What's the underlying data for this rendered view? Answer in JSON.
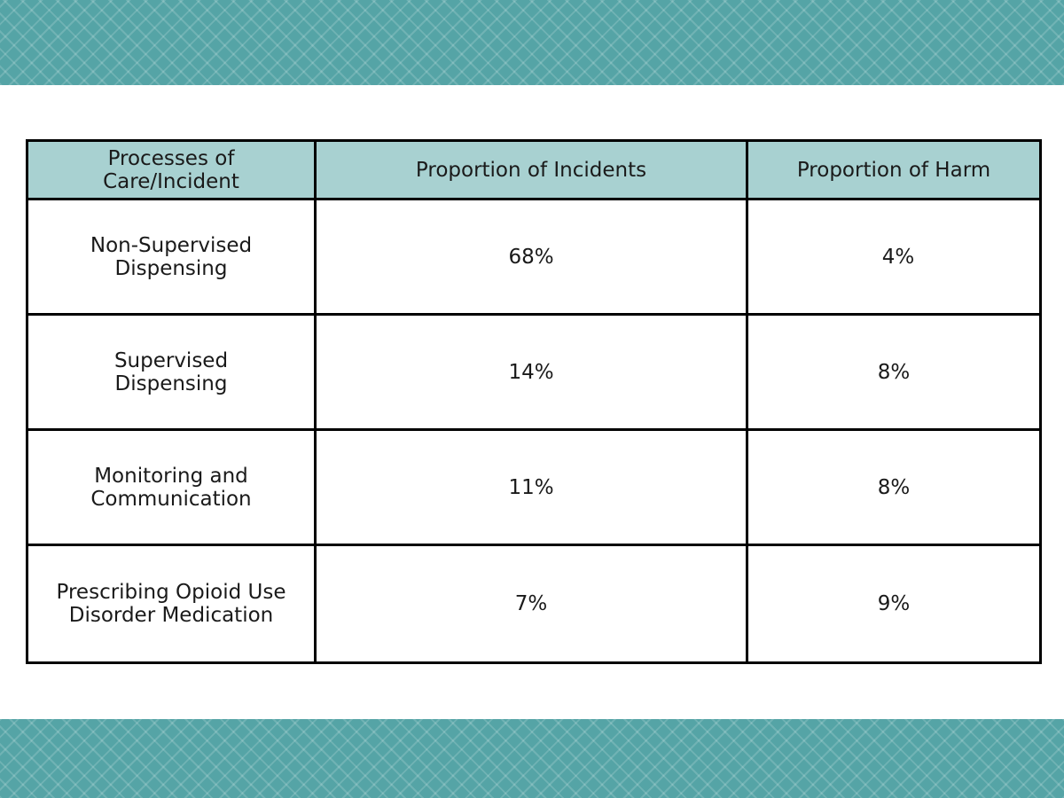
{
  "table": {
    "headers": {
      "process": "Processes of Care/Incident",
      "incidents": "Proportion of Incidents",
      "harm": "Proportion of Harm"
    },
    "rows": [
      {
        "process": "Non-Supervised Dispensing",
        "incidents": "68%",
        "harm": "4%"
      },
      {
        "process": "Supervised Dispensing",
        "incidents": "14%",
        "harm": "8%"
      },
      {
        "process": "Monitoring and Communication",
        "incidents": "11%",
        "harm": "8%"
      },
      {
        "process": "Prescribing Opioid Use Disorder Medication",
        "incidents": "7%",
        "harm": "9%"
      }
    ]
  },
  "colors": {
    "band": "#55a4a6",
    "header_fill": "#a8d1d1",
    "border": "#000000"
  }
}
